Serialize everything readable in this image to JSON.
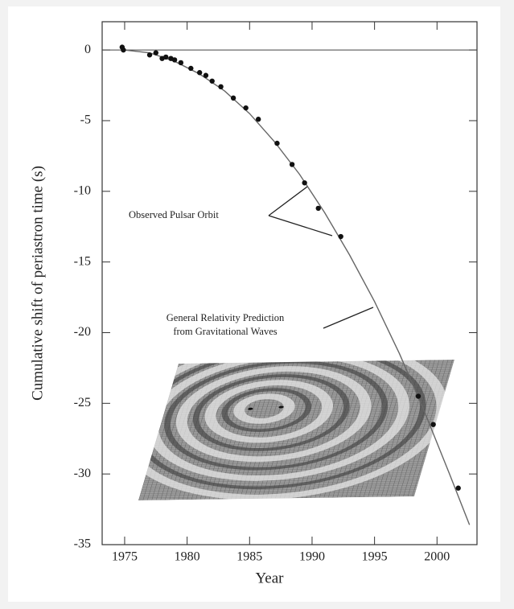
{
  "chart_data": {
    "type": "scatter",
    "y_label": "Cumulative shift of periastron time (s)",
    "x_label": "Year",
    "xlim": [
      1973.2,
      2003.2
    ],
    "ylim": [
      -35,
      2
    ],
    "xticks": [
      1975,
      1980,
      1985,
      1990,
      1995,
      2000
    ],
    "yticks": [
      0,
      -5,
      -10,
      -15,
      -20,
      -25,
      -30,
      -35
    ],
    "points": {
      "color": "#111111",
      "x": [
        1974.8,
        1974.9,
        1977.0,
        1977.5,
        1978.0,
        1978.3,
        1978.7,
        1979.0,
        1979.5,
        1980.3,
        1981.0,
        1981.5,
        1982.0,
        1982.7,
        1983.7,
        1984.7,
        1985.7,
        1987.2,
        1988.4,
        1989.4,
        1990.5,
        1992.3,
        1998.5,
        1999.7,
        2001.7
      ],
      "values": [
        0.2,
        0.0,
        -0.35,
        -0.2,
        -0.6,
        -0.5,
        -0.6,
        -0.7,
        -0.9,
        -1.3,
        -1.6,
        -1.8,
        -2.2,
        -2.6,
        -3.4,
        -4.1,
        -4.9,
        -6.6,
        -8.1,
        -9.4,
        -11.2,
        -13.2,
        -24.5,
        -26.5,
        -31.0
      ]
    },
    "curve": {
      "color": "#666666",
      "x": [
        1975,
        1977,
        1979,
        1981,
        1983,
        1985,
        1987,
        1989,
        1991,
        1993,
        1995,
        1997,
        1999,
        2001,
        2002.6
      ],
      "values": [
        0,
        -0.2,
        -0.8,
        -1.7,
        -2.9,
        -4.5,
        -6.5,
        -8.8,
        -11.5,
        -14.5,
        -17.8,
        -21.5,
        -25.6,
        -30.0,
        -33.6
      ]
    },
    "annotations": [
      "Observed Pulsar Orbit",
      "General Relativity Prediction",
      "from Gravitational Waves"
    ]
  }
}
